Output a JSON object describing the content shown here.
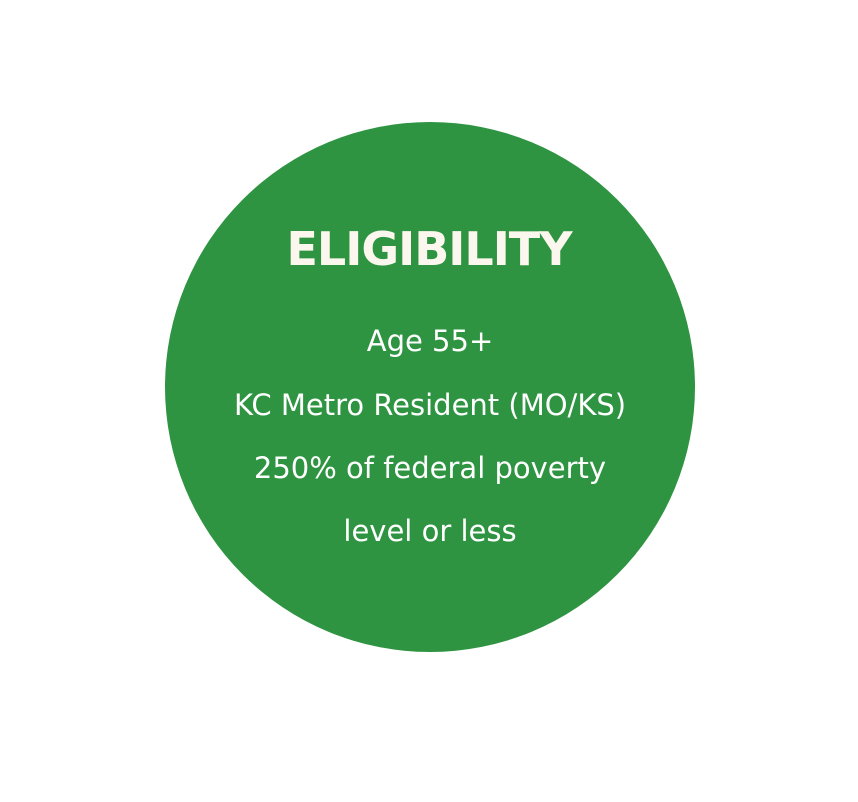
{
  "colors": {
    "circle": "#2e9441",
    "text": "#ffffff"
  },
  "title": "ELIGIBILITY",
  "lines": [
    "Age 55+",
    "KC Metro Resident (MO/KS)",
    "250% of federal poverty",
    "level or less"
  ]
}
